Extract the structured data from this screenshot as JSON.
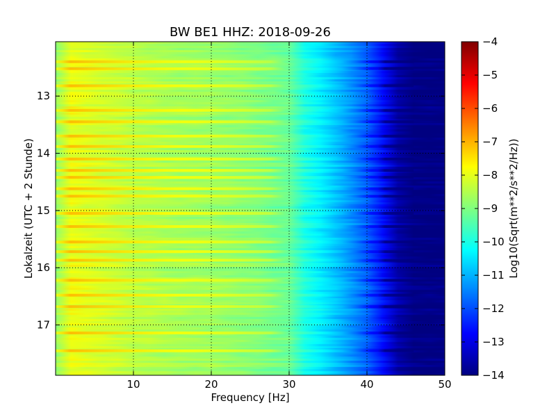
{
  "chart_data": {
    "type": "heatmap",
    "title": "BW BE1 HHZ: 2018-09-26",
    "xlabel": "Frequency [Hz]",
    "ylabel": "Lokalzeit (UTC + 2 Stunde)",
    "xlim": [
      0,
      50
    ],
    "ylim": [
      17.88,
      12.05
    ],
    "y_axis_inverted": true,
    "xticks": [
      10,
      20,
      30,
      40,
      50
    ],
    "yticks": [
      13,
      14,
      15,
      16,
      17
    ],
    "grid": true,
    "colormap": "jet",
    "colorbar": {
      "label": "Log10(Sqrt(m**2/s**2/Hz))",
      "range": [
        -14,
        -4
      ],
      "ticks": [
        -4,
        -5,
        -6,
        -7,
        -8,
        -9,
        -10,
        -11,
        -12,
        -13,
        -14
      ]
    },
    "trend": {
      "frequency_hz": [
        0,
        2,
        5,
        10,
        15,
        20,
        25,
        30,
        32,
        35,
        38,
        40,
        42,
        44,
        46,
        50
      ],
      "log10_amplitude": [
        -8.8,
        -7.9,
        -8.1,
        -8.4,
        -8.6,
        -8.7,
        -8.9,
        -9.2,
        -10.0,
        -10.6,
        -11.3,
        -11.8,
        -12.6,
        -13.6,
        -14.0,
        -14.0
      ]
    },
    "bright_bands_local_hour": [
      12.4,
      12.52,
      12.82,
      13.25,
      13.45,
      13.7,
      13.88,
      14.1,
      14.3,
      14.42,
      14.62,
      14.75,
      15.05,
      15.28,
      15.55,
      15.72,
      15.87,
      16.22,
      16.48,
      16.68,
      17.14,
      17.45
    ]
  }
}
